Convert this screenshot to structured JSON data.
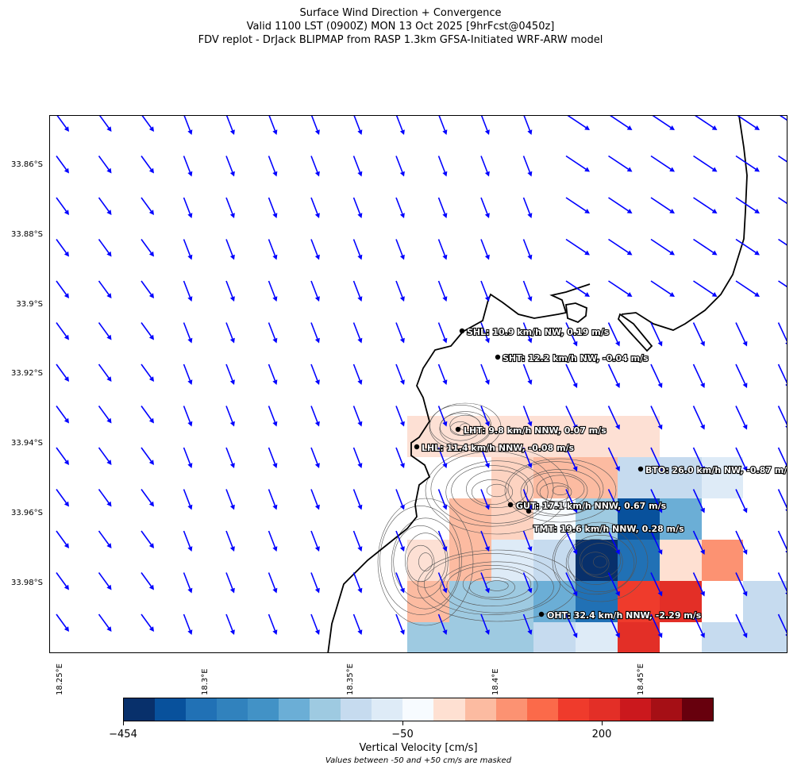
{
  "header": {
    "title_line1": "Surface Wind Direction + Convergence",
    "title_line2": "Valid 1100 LST (0900Z) MON 13 Oct 2025 [9hrFcst@0450z]",
    "title_line3": "FDV replot - DrJack BLIPMAP from RASP 1.3km GFSA-Initiated WRF-ARW model"
  },
  "axes": {
    "lat_labels": [
      "33.86°S",
      "33.88°S",
      "33.9°S",
      "33.92°S",
      "33.94°S",
      "33.96°S",
      "33.98°S"
    ],
    "lon_labels": [
      "18.25°E",
      "18.3°E",
      "18.35°E",
      "18.4°E",
      "18.45°E"
    ]
  },
  "stations": [
    {
      "code": "SHL",
      "label": "SHL: 10.9 km/h NW, 0.19 m/s"
    },
    {
      "code": "SHT",
      "label": "SHT: 12.2 km/h NW, -0.04 m/s"
    },
    {
      "code": "LHT",
      "label": "LHT: 9.8 km/h NNW, 0.07 m/s"
    },
    {
      "code": "LHL",
      "label": "LHL: 11.4 km/h NNW, -0.08 m/s"
    },
    {
      "code": "BTO",
      "label": "BTO: 26.0 km/h NW, -0.87 m/s"
    },
    {
      "code": "GUT",
      "label": "GUT: 17.1 km/h NNW, 0.67 m/s"
    },
    {
      "code": "TMT",
      "label": "TMT: 19.6 km/h NNW, 0.28 m/s"
    },
    {
      "code": "OHT",
      "label": "OHT: 32.4 km/h NNW, -2.29 m/s"
    }
  ],
  "colorbar": {
    "tick_min": "−454",
    "tick_mid": "−50",
    "tick_high": "200",
    "label": "Vertical Velocity [cm/s]",
    "note": "Values between -50 and +50 cm/s are masked",
    "colors": [
      "#08306b",
      "#08519c",
      "#2171b5",
      "#3182bd",
      "#4292c6",
      "#6baed6",
      "#9ecae1",
      "#c6dbef",
      "#deebf7",
      "#f7fbff",
      "#fee0d2",
      "#fcbba1",
      "#fc9272",
      "#fb6a4a",
      "#ef3b2c",
      "#e32f27",
      "#cb181d",
      "#a50f15",
      "#67000d"
    ]
  },
  "colors": {
    "wind_arrow": "#0000ff",
    "coastline": "#000000",
    "contour": "#555555",
    "station_dot": "#000000"
  }
}
